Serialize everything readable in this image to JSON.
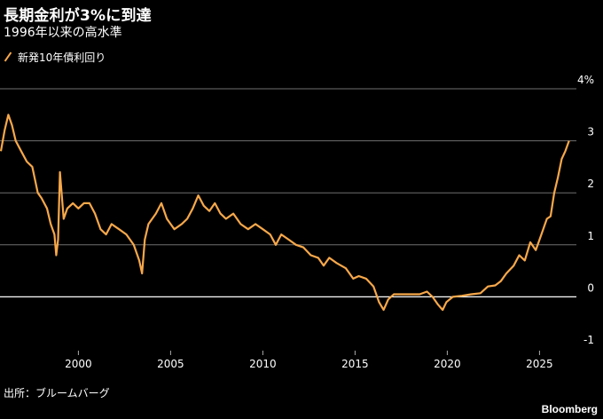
{
  "title": "長期金利が3%に到達",
  "subtitle": "1996年以来の高水準",
  "source": "出所：ブルームバーグ",
  "brand": "Bloomberg",
  "colors": {
    "series": "#f7a84a",
    "grid": "#6f6f6f",
    "zero": "#ffffff",
    "background": "#000000"
  },
  "chart_data": {
    "type": "line",
    "series": [
      {
        "name": "新発10年債利回り",
        "points": [
          [
            1995.8,
            2.8
          ],
          [
            1996.0,
            3.2
          ],
          [
            1996.2,
            3.5
          ],
          [
            1996.4,
            3.3
          ],
          [
            1996.6,
            3.0
          ],
          [
            1996.9,
            2.8
          ],
          [
            1997.2,
            2.6
          ],
          [
            1997.5,
            2.5
          ],
          [
            1997.8,
            2.0
          ],
          [
            1998.0,
            1.9
          ],
          [
            1998.3,
            1.7
          ],
          [
            1998.5,
            1.4
          ],
          [
            1998.7,
            1.2
          ],
          [
            1998.8,
            0.8
          ],
          [
            1998.9,
            1.1
          ],
          [
            1999.0,
            2.4
          ],
          [
            1999.2,
            1.5
          ],
          [
            1999.4,
            1.7
          ],
          [
            1999.7,
            1.8
          ],
          [
            2000.0,
            1.7
          ],
          [
            2000.3,
            1.8
          ],
          [
            2000.6,
            1.8
          ],
          [
            2000.9,
            1.6
          ],
          [
            2001.2,
            1.3
          ],
          [
            2001.5,
            1.2
          ],
          [
            2001.8,
            1.4
          ],
          [
            2002.2,
            1.3
          ],
          [
            2002.6,
            1.2
          ],
          [
            2003.0,
            1.0
          ],
          [
            2003.3,
            0.7
          ],
          [
            2003.45,
            0.45
          ],
          [
            2003.6,
            1.1
          ],
          [
            2003.8,
            1.4
          ],
          [
            2004.2,
            1.6
          ],
          [
            2004.5,
            1.8
          ],
          [
            2004.8,
            1.5
          ],
          [
            2005.2,
            1.3
          ],
          [
            2005.6,
            1.4
          ],
          [
            2005.9,
            1.5
          ],
          [
            2006.2,
            1.7
          ],
          [
            2006.5,
            1.95
          ],
          [
            2006.8,
            1.75
          ],
          [
            2007.1,
            1.65
          ],
          [
            2007.4,
            1.8
          ],
          [
            2007.7,
            1.6
          ],
          [
            2008.0,
            1.5
          ],
          [
            2008.4,
            1.6
          ],
          [
            2008.8,
            1.4
          ],
          [
            2009.2,
            1.3
          ],
          [
            2009.6,
            1.4
          ],
          [
            2010.0,
            1.3
          ],
          [
            2010.4,
            1.2
          ],
          [
            2010.7,
            1.0
          ],
          [
            2011.0,
            1.2
          ],
          [
            2011.4,
            1.1
          ],
          [
            2011.8,
            1.0
          ],
          [
            2012.2,
            0.95
          ],
          [
            2012.6,
            0.8
          ],
          [
            2013.0,
            0.75
          ],
          [
            2013.3,
            0.6
          ],
          [
            2013.6,
            0.75
          ],
          [
            2014.0,
            0.65
          ],
          [
            2014.5,
            0.55
          ],
          [
            2014.9,
            0.35
          ],
          [
            2015.2,
            0.4
          ],
          [
            2015.6,
            0.35
          ],
          [
            2016.0,
            0.2
          ],
          [
            2016.3,
            -0.1
          ],
          [
            2016.55,
            -0.25
          ],
          [
            2016.8,
            -0.05
          ],
          [
            2017.1,
            0.05
          ],
          [
            2017.6,
            0.05
          ],
          [
            2018.0,
            0.05
          ],
          [
            2018.5,
            0.05
          ],
          [
            2018.9,
            0.1
          ],
          [
            2019.2,
            0.0
          ],
          [
            2019.5,
            -0.15
          ],
          [
            2019.75,
            -0.25
          ],
          [
            2019.95,
            -0.1
          ],
          [
            2020.3,
            0.0
          ],
          [
            2020.8,
            0.02
          ],
          [
            2021.3,
            0.05
          ],
          [
            2021.8,
            0.07
          ],
          [
            2022.2,
            0.2
          ],
          [
            2022.6,
            0.22
          ],
          [
            2022.9,
            0.3
          ],
          [
            2023.2,
            0.45
          ],
          [
            2023.6,
            0.6
          ],
          [
            2023.9,
            0.8
          ],
          [
            2024.2,
            0.7
          ],
          [
            2024.5,
            1.05
          ],
          [
            2024.8,
            0.9
          ],
          [
            2025.1,
            1.2
          ],
          [
            2025.4,
            1.5
          ],
          [
            2025.6,
            1.55
          ],
          [
            2025.8,
            2.0
          ],
          [
            2026.0,
            2.3
          ],
          [
            2026.2,
            2.65
          ],
          [
            2026.4,
            2.8
          ],
          [
            2026.6,
            3.0
          ]
        ]
      }
    ],
    "x_ticks": [
      "2000",
      "2005",
      "2010",
      "2015",
      "2020",
      "2025"
    ],
    "y_ticks": [
      {
        "value": -1,
        "label": "-1"
      },
      {
        "value": 0,
        "label": "0"
      },
      {
        "value": 1,
        "label": "1"
      },
      {
        "value": 2,
        "label": "2"
      },
      {
        "value": 3,
        "label": "3"
      },
      {
        "value": 4,
        "label": "4%"
      }
    ],
    "xlim": [
      1995.75,
      2027.0
    ],
    "ylim": [
      -1,
      4
    ],
    "grid": true,
    "legend": "top-left"
  }
}
